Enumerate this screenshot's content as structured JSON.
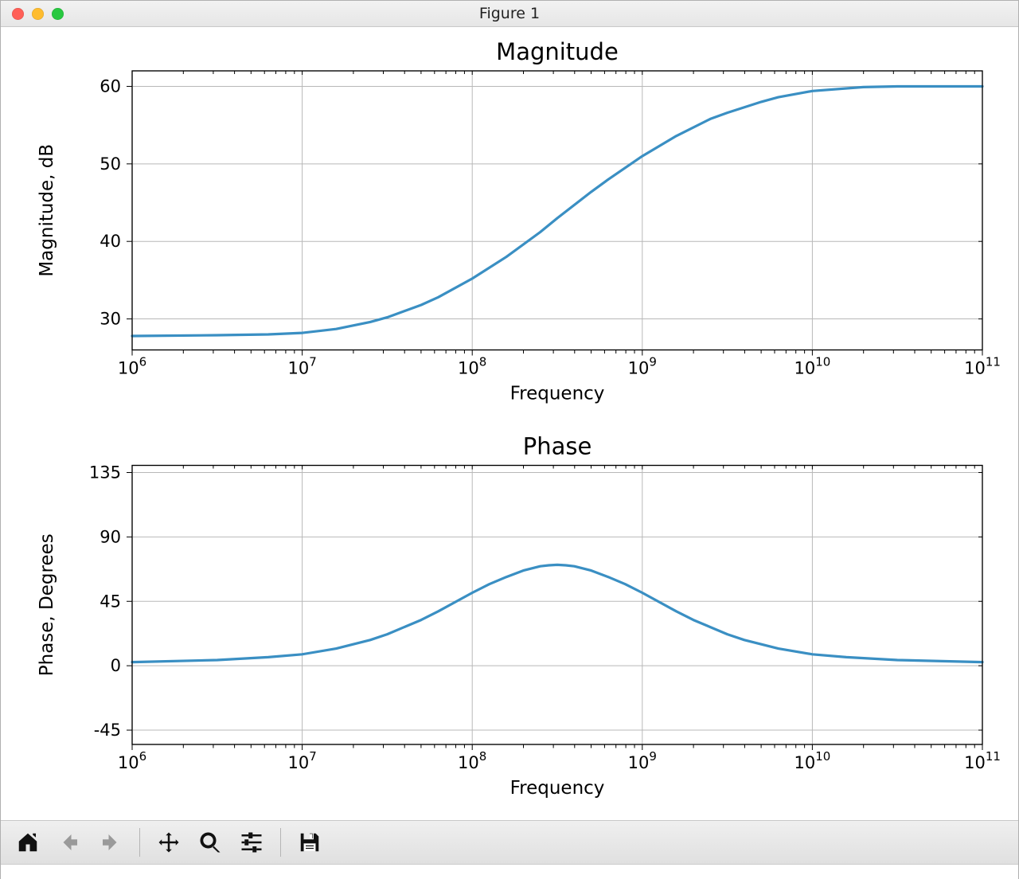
{
  "window": {
    "title": "Figure 1",
    "traffic_light_colors": [
      "#ff5f57",
      "#febc2e",
      "#28c840"
    ]
  },
  "toolbar": {
    "items": [
      {
        "name": "home-icon",
        "kind": "home",
        "enabled": true
      },
      {
        "name": "back-icon",
        "kind": "arrow-left",
        "enabled": false
      },
      {
        "name": "forward-icon",
        "kind": "arrow-right",
        "enabled": false
      },
      {
        "separator": true
      },
      {
        "name": "pan-icon",
        "kind": "move",
        "enabled": true
      },
      {
        "name": "zoom-icon",
        "kind": "zoom",
        "enabled": true
      },
      {
        "name": "subplots-icon",
        "kind": "sliders",
        "enabled": true
      },
      {
        "separator": true
      },
      {
        "name": "save-icon",
        "kind": "save",
        "enabled": true
      }
    ]
  },
  "figure": {
    "background_color": "#ffffff",
    "line_color": "#3a8fc3",
    "line_width": 3.2,
    "grid_color": "#b8b8b8",
    "grid_width": 1,
    "axis_color": "#000000",
    "tick_fontsize": 21,
    "label_fontsize": 23,
    "title_fontsize": 29,
    "charts": [
      {
        "title": "Magnitude",
        "xlabel": "Frequency",
        "ylabel": "Magnitude, dB",
        "x_scale": "log",
        "x_exp_min": 6,
        "x_exp_max": 11,
        "ylim": [
          26,
          62
        ],
        "yticks": [
          30,
          40,
          50,
          60
        ],
        "data": [
          [
            6.0,
            27.8
          ],
          [
            6.5,
            27.9
          ],
          [
            6.8,
            28.0
          ],
          [
            7.0,
            28.2
          ],
          [
            7.2,
            28.7
          ],
          [
            7.4,
            29.6
          ],
          [
            7.5,
            30.2
          ],
          [
            7.7,
            31.8
          ],
          [
            7.8,
            32.8
          ],
          [
            8.0,
            35.2
          ],
          [
            8.2,
            38.0
          ],
          [
            8.4,
            41.2
          ],
          [
            8.5,
            43.0
          ],
          [
            8.7,
            46.4
          ],
          [
            8.8,
            48.0
          ],
          [
            9.0,
            51.0
          ],
          [
            9.2,
            53.6
          ],
          [
            9.4,
            55.8
          ],
          [
            9.5,
            56.6
          ],
          [
            9.7,
            58.0
          ],
          [
            9.8,
            58.6
          ],
          [
            10.0,
            59.4
          ],
          [
            10.3,
            59.9
          ],
          [
            10.5,
            60.0
          ],
          [
            11.0,
            60.0
          ]
        ]
      },
      {
        "title": "Phase",
        "xlabel": "Frequency",
        "ylabel": "Phase, Degrees",
        "x_scale": "log",
        "x_exp_min": 6,
        "x_exp_max": 11,
        "ylim": [
          -55,
          140
        ],
        "yticks": [
          -45,
          0,
          45,
          90,
          135
        ],
        "data": [
          [
            6.0,
            2.5
          ],
          [
            6.5,
            4.0
          ],
          [
            6.8,
            6.0
          ],
          [
            7.0,
            8.0
          ],
          [
            7.2,
            12.0
          ],
          [
            7.4,
            18.0
          ],
          [
            7.5,
            22.0
          ],
          [
            7.7,
            32.0
          ],
          [
            7.8,
            38.0
          ],
          [
            8.0,
            51.0
          ],
          [
            8.1,
            57.0
          ],
          [
            8.2,
            62.0
          ],
          [
            8.3,
            66.5
          ],
          [
            8.4,
            69.5
          ],
          [
            8.45,
            70.2
          ],
          [
            8.5,
            70.5
          ],
          [
            8.55,
            70.2
          ],
          [
            8.6,
            69.5
          ],
          [
            8.7,
            66.5
          ],
          [
            8.8,
            62.0
          ],
          [
            8.9,
            57.0
          ],
          [
            9.0,
            51.0
          ],
          [
            9.2,
            38.0
          ],
          [
            9.3,
            32.0
          ],
          [
            9.5,
            22.0
          ],
          [
            9.6,
            18.0
          ],
          [
            9.8,
            12.0
          ],
          [
            10.0,
            8.0
          ],
          [
            10.2,
            6.0
          ],
          [
            10.5,
            4.0
          ],
          [
            11.0,
            2.5
          ]
        ]
      }
    ]
  }
}
